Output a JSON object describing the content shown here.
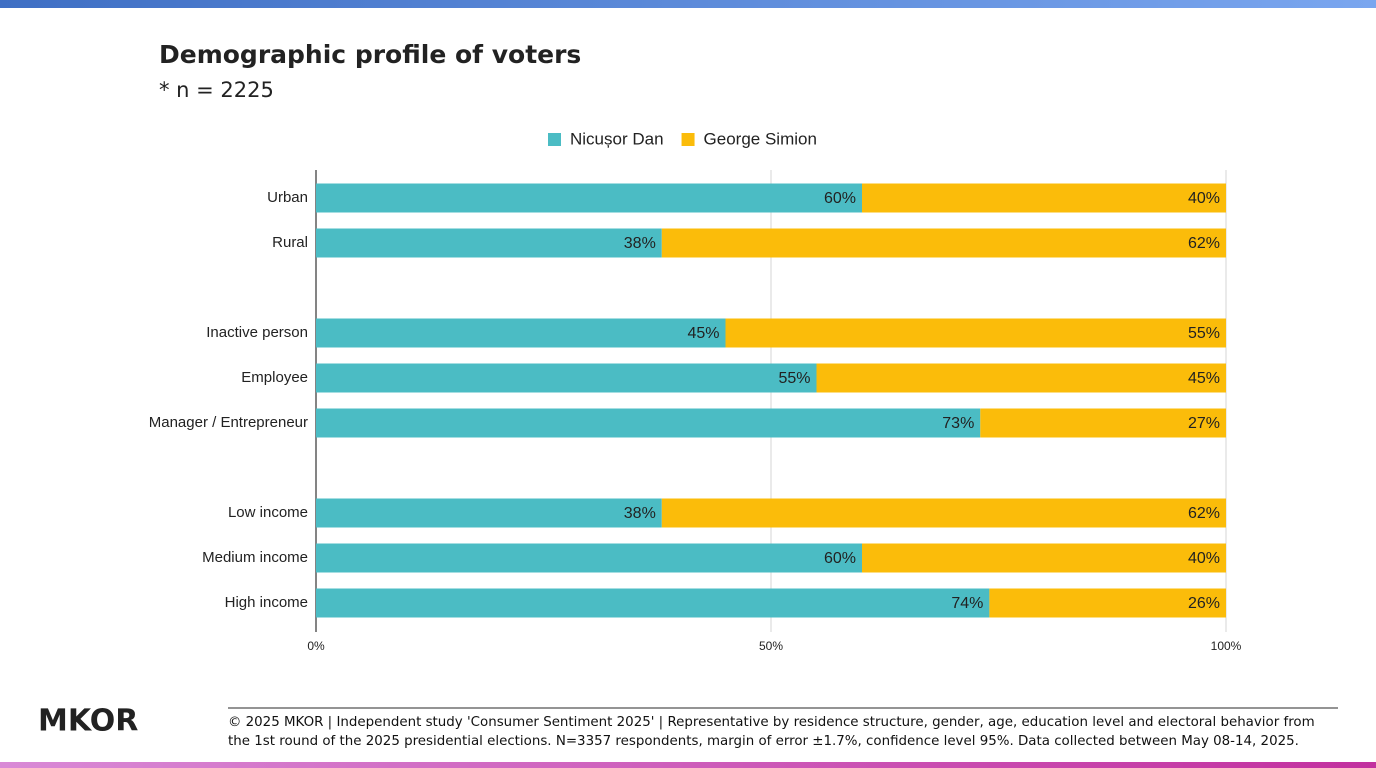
{
  "chart_data": {
    "type": "stacked-bar-horizontal",
    "title": "Demographic profile of voters",
    "subtitle": "* n = 2225",
    "categories": [
      "Urban",
      "Rural",
      null,
      "Inactive person",
      "Employee",
      "Manager / Entrepreneur",
      null,
      "Low income",
      "Medium income",
      "High income"
    ],
    "series": [
      {
        "name": "Nicușor Dan",
        "color": "#4bbcc4",
        "values": [
          60,
          38,
          null,
          45,
          55,
          73,
          null,
          38,
          60,
          74
        ],
        "value_labels": [
          "60%",
          "38%",
          null,
          "45%",
          "55%",
          "73%",
          null,
          "38%",
          "60%",
          "74%"
        ]
      },
      {
        "name": "George Simion",
        "color": "#fbbc0a",
        "values": [
          40,
          62,
          null,
          55,
          45,
          27,
          null,
          62,
          40,
          26
        ],
        "value_labels": [
          "40%",
          "62%",
          null,
          "55%",
          "45%",
          "27%",
          null,
          "62%",
          "40%",
          "26%"
        ]
      }
    ],
    "xlim": [
      0,
      100
    ],
    "xticks": [
      {
        "value": 0,
        "label": "0%"
      },
      {
        "value": 50,
        "label": "50%"
      },
      {
        "value": 100,
        "label": "100%"
      }
    ],
    "grid": true,
    "legend": "top"
  },
  "logo": "MKOR",
  "footer": "© 2025 MKOR | Independent study 'Consumer Sentiment 2025' | Representative by residence structure, gender, age, education level and electoral behavior from the 1st round of the 2025 presidential elections. N=3357 respondents, margin of error ±1.7%, confidence level 95%. Data collected between May 08-14, 2025."
}
